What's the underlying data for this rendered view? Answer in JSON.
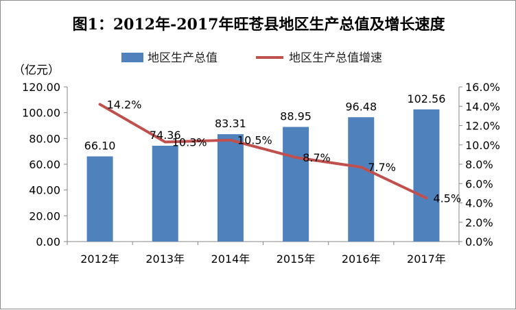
{
  "chart_data": {
    "type": "bar+line",
    "title": "图1：2012年-2017年旺苍县地区生产总值及增长速度",
    "y_left_unit": "（亿元）",
    "categories": [
      "2012年",
      "2013年",
      "2014年",
      "2015年",
      "2016年",
      "2017年"
    ],
    "series": [
      {
        "name": "地区生产总值",
        "type": "bar",
        "axis": "left",
        "values": [
          66.1,
          74.36,
          83.31,
          88.95,
          96.48,
          102.56
        ],
        "labels": [
          "66.10",
          "74.36",
          "83.31",
          "88.95",
          "96.48",
          "102.56"
        ]
      },
      {
        "name": "地区生产总值增速",
        "type": "line",
        "axis": "right",
        "values": [
          14.2,
          10.3,
          10.5,
          8.7,
          7.7,
          4.5
        ],
        "labels": [
          "14.2%",
          "10.3%",
          "10.5%",
          "8.7%",
          "7.7%",
          "4.5%"
        ]
      }
    ],
    "y_left": {
      "min": 0,
      "max": 120,
      "step": 20,
      "tick_labels": [
        "0.00",
        "20.00",
        "40.00",
        "60.00",
        "80.00",
        "100.00",
        "120.00"
      ]
    },
    "y_right": {
      "min": 0,
      "max": 16,
      "step": 2,
      "tick_labels": [
        "0.0%",
        "2.0%",
        "4.0%",
        "6.0%",
        "8.0%",
        "10.0%",
        "12.0%",
        "14.0%",
        "16.0%"
      ]
    },
    "grid": false,
    "legend_position": "top",
    "colors": {
      "bar": "#4f81bd",
      "line": "#c0504d",
      "axis": "#868686"
    }
  }
}
